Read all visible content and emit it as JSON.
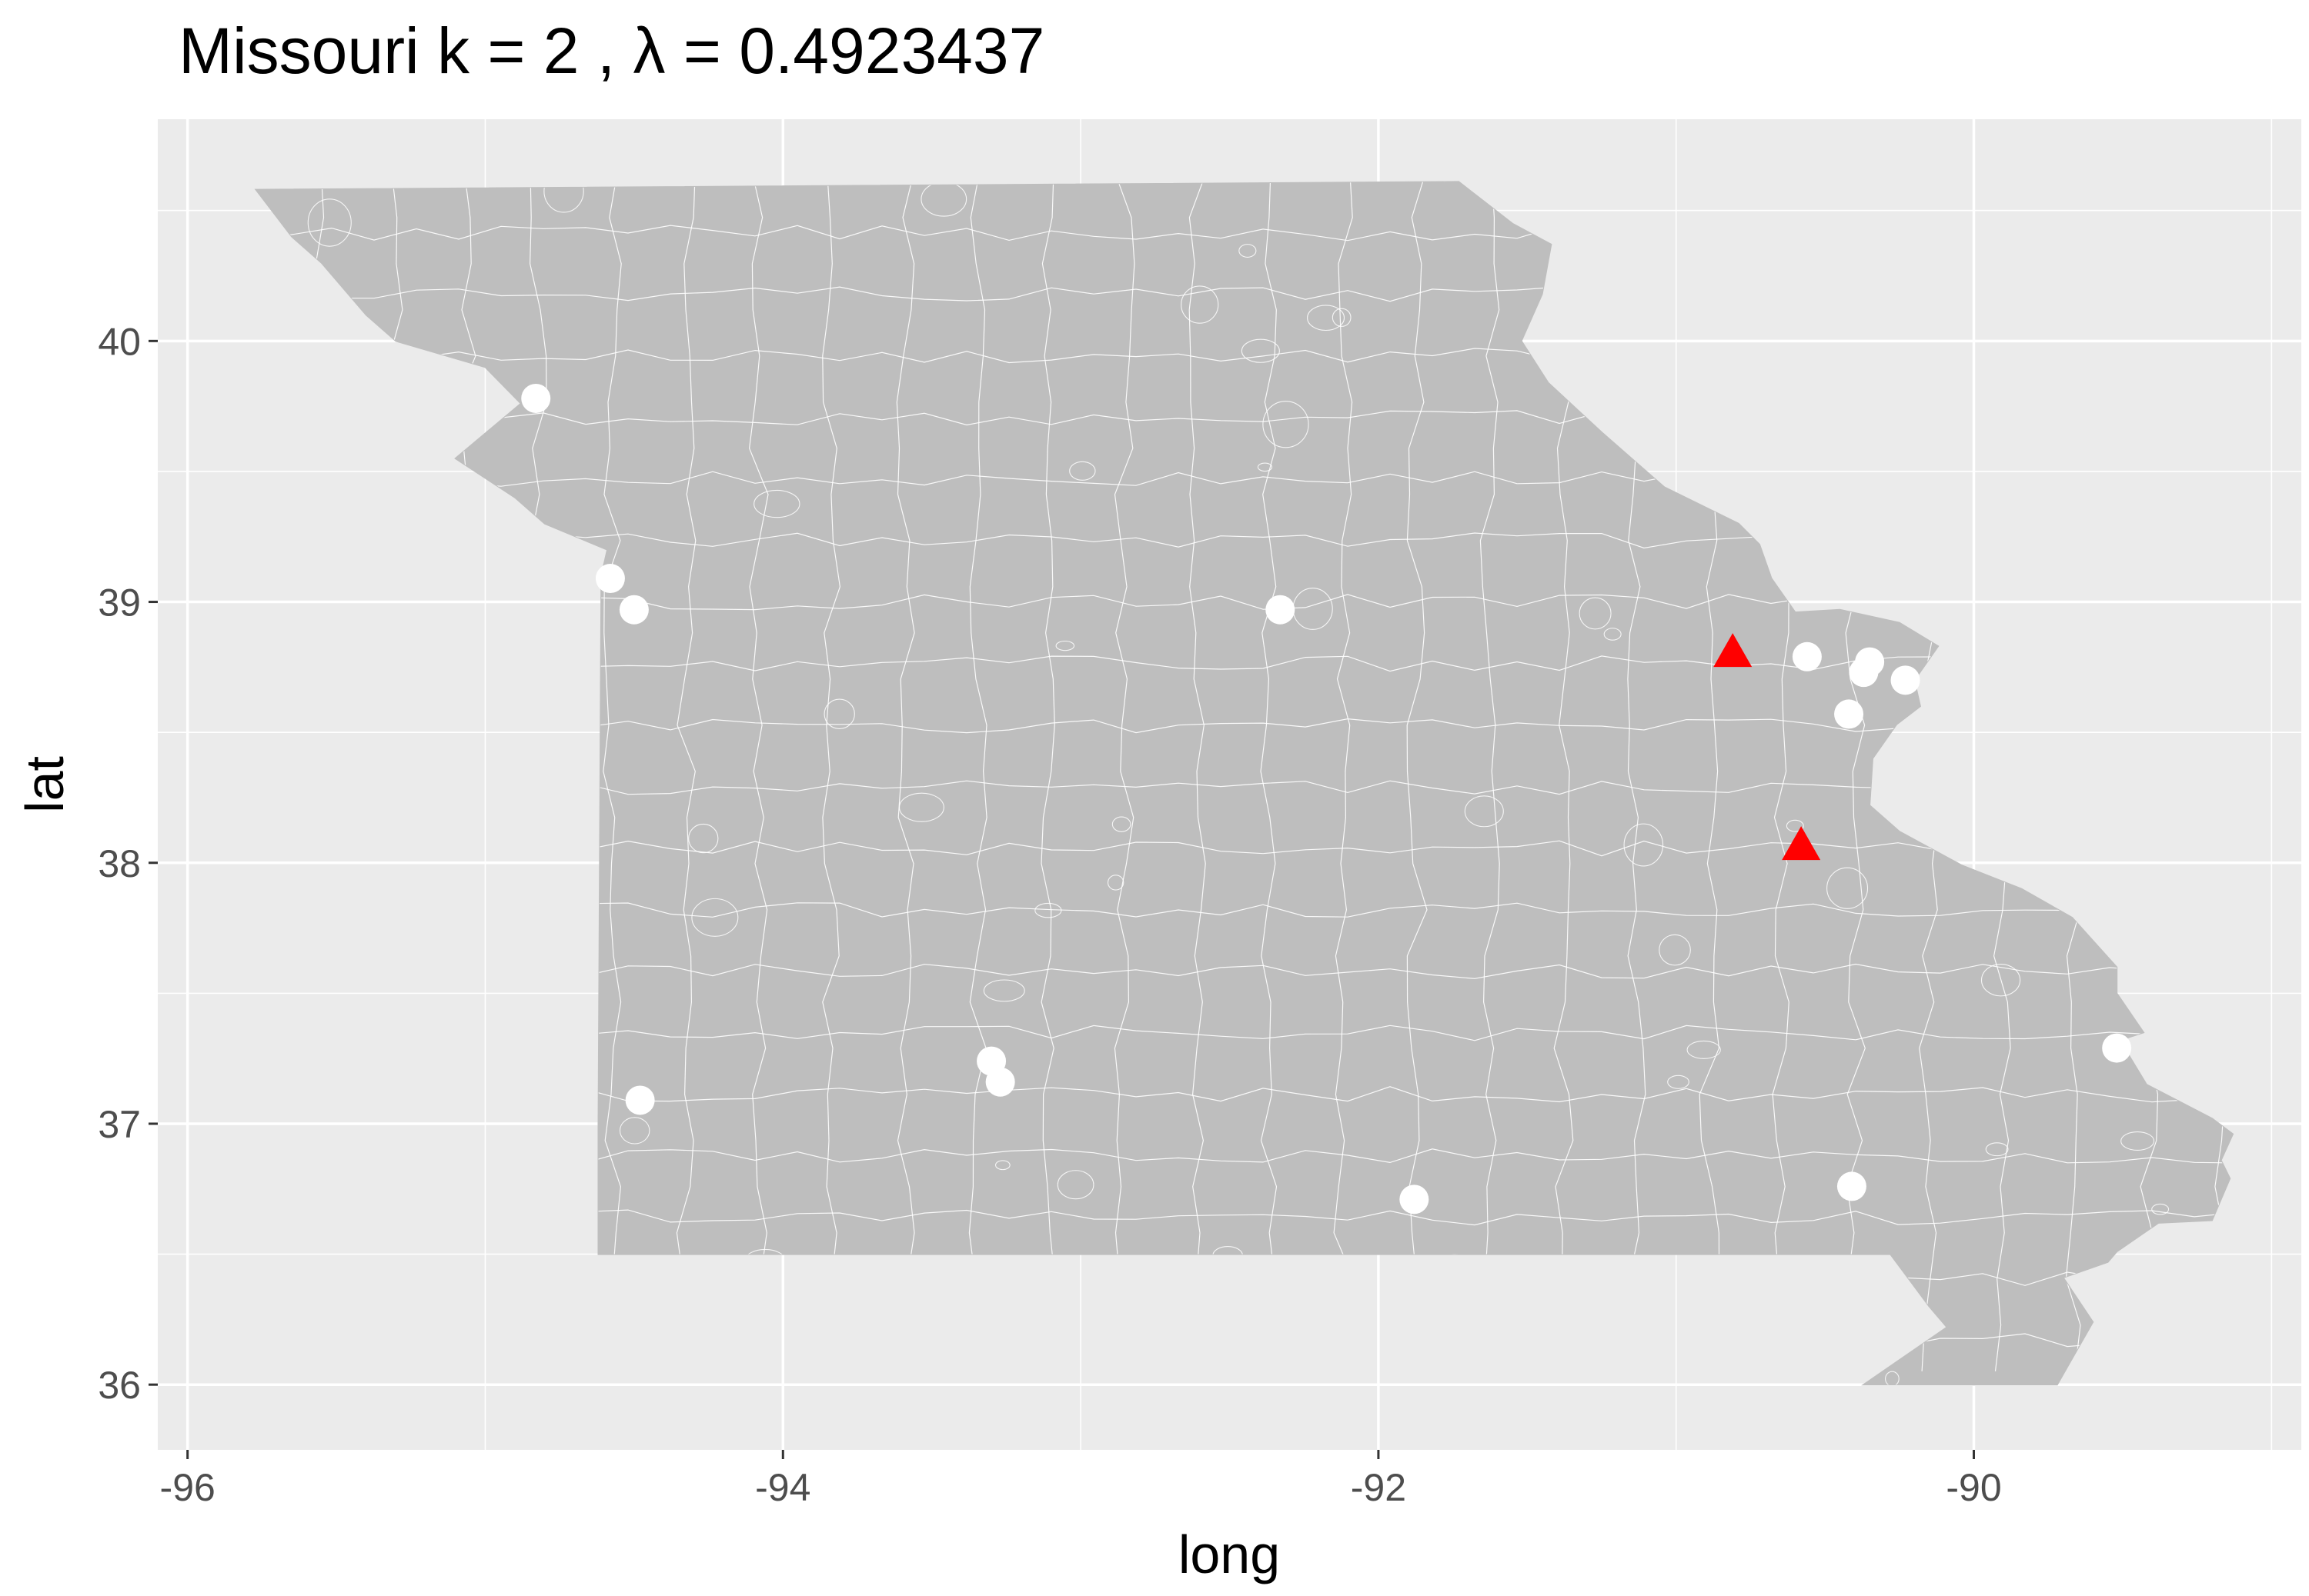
{
  "chart_data": {
    "type": "map",
    "title_text": "Missouri  k =  2 ,  λ  =  0.4923437",
    "xlabel": "long",
    "ylabel": "lat",
    "xlim": [
      -96.1,
      -88.9
    ],
    "ylim": [
      35.75,
      40.85
    ],
    "x_ticks": [
      -96,
      -94,
      -92,
      -90
    ],
    "y_ticks": [
      36,
      37,
      38,
      39,
      40
    ],
    "x_tick_labels": [
      "-96",
      "-94",
      "-92",
      "-90"
    ],
    "y_tick_labels": [
      "36",
      "37",
      "38",
      "39",
      "40"
    ],
    "panel_color": "#ebebeb",
    "grid_color": "#ffffff",
    "region_fill": "#bebebe",
    "region_border": "#ffffff",
    "state_outline": [
      [
        -95.77,
        40.58
      ],
      [
        -91.73,
        40.61
      ],
      [
        -91.55,
        40.45
      ],
      [
        -91.42,
        40.37
      ],
      [
        -91.45,
        40.18
      ],
      [
        -91.52,
        40.0
      ],
      [
        -91.43,
        39.84
      ],
      [
        -91.25,
        39.65
      ],
      [
        -91.04,
        39.44
      ],
      [
        -90.79,
        39.3
      ],
      [
        -90.72,
        39.22
      ],
      [
        -90.68,
        39.09
      ],
      [
        -90.6,
        38.96
      ],
      [
        -90.45,
        38.97
      ],
      [
        -90.25,
        38.92
      ],
      [
        -90.12,
        38.83
      ],
      [
        -90.2,
        38.7
      ],
      [
        -90.18,
        38.6
      ],
      [
        -90.26,
        38.53
      ],
      [
        -90.34,
        38.4
      ],
      [
        -90.35,
        38.22
      ],
      [
        -90.25,
        38.12
      ],
      [
        -90.04,
        37.99
      ],
      [
        -89.84,
        37.9
      ],
      [
        -89.67,
        37.79
      ],
      [
        -89.52,
        37.6
      ],
      [
        -89.52,
        37.5
      ],
      [
        -89.43,
        37.35
      ],
      [
        -89.51,
        37.32
      ],
      [
        -89.42,
        37.15
      ],
      [
        -89.2,
        37.02
      ],
      [
        -89.13,
        36.96
      ],
      [
        -89.17,
        36.86
      ],
      [
        -89.14,
        36.79
      ],
      [
        -89.2,
        36.63
      ],
      [
        -89.38,
        36.62
      ],
      [
        -89.52,
        36.51
      ],
      [
        -89.55,
        36.47
      ],
      [
        -89.7,
        36.41
      ],
      [
        -89.6,
        36.24
      ],
      [
        -89.72,
        36.0
      ],
      [
        -90.37,
        36.0
      ],
      [
        -90.09,
        36.22
      ],
      [
        -90.15,
        36.3
      ],
      [
        -90.28,
        36.5
      ],
      [
        -94.62,
        36.5
      ],
      [
        -94.62,
        37.0
      ],
      [
        -94.61,
        39.1
      ],
      [
        -94.59,
        39.2
      ],
      [
        -94.8,
        39.3
      ],
      [
        -94.9,
        39.4
      ],
      [
        -95.1,
        39.55
      ],
      [
        -94.88,
        39.76
      ],
      [
        -95.0,
        39.9
      ],
      [
        -95.3,
        40.0
      ],
      [
        -95.4,
        40.1
      ],
      [
        -95.55,
        40.3
      ],
      [
        -95.65,
        40.4
      ],
      [
        -95.77,
        40.58
      ]
    ],
    "series": [
      {
        "marker": "circle",
        "color": "#ffffff",
        "points": [
          {
            "x": -94.83,
            "y": 39.78
          },
          {
            "x": -94.58,
            "y": 39.09
          },
          {
            "x": -94.5,
            "y": 38.97
          },
          {
            "x": -92.33,
            "y": 38.97
          },
          {
            "x": -90.56,
            "y": 38.79
          },
          {
            "x": -90.35,
            "y": 38.77
          },
          {
            "x": -90.37,
            "y": 38.73
          },
          {
            "x": -90.23,
            "y": 38.7
          },
          {
            "x": -90.42,
            "y": 38.57
          },
          {
            "x": -89.52,
            "y": 37.29
          },
          {
            "x": -93.3,
            "y": 37.24
          },
          {
            "x": -93.27,
            "y": 37.16
          },
          {
            "x": -94.48,
            "y": 37.09
          },
          {
            "x": -91.88,
            "y": 36.71
          },
          {
            "x": -90.41,
            "y": 36.76
          }
        ]
      },
      {
        "marker": "triangle",
        "color": "#ff0000",
        "points": [
          {
            "x": -90.81,
            "y": 38.8
          },
          {
            "x": -90.58,
            "y": 38.06
          }
        ]
      }
    ]
  }
}
